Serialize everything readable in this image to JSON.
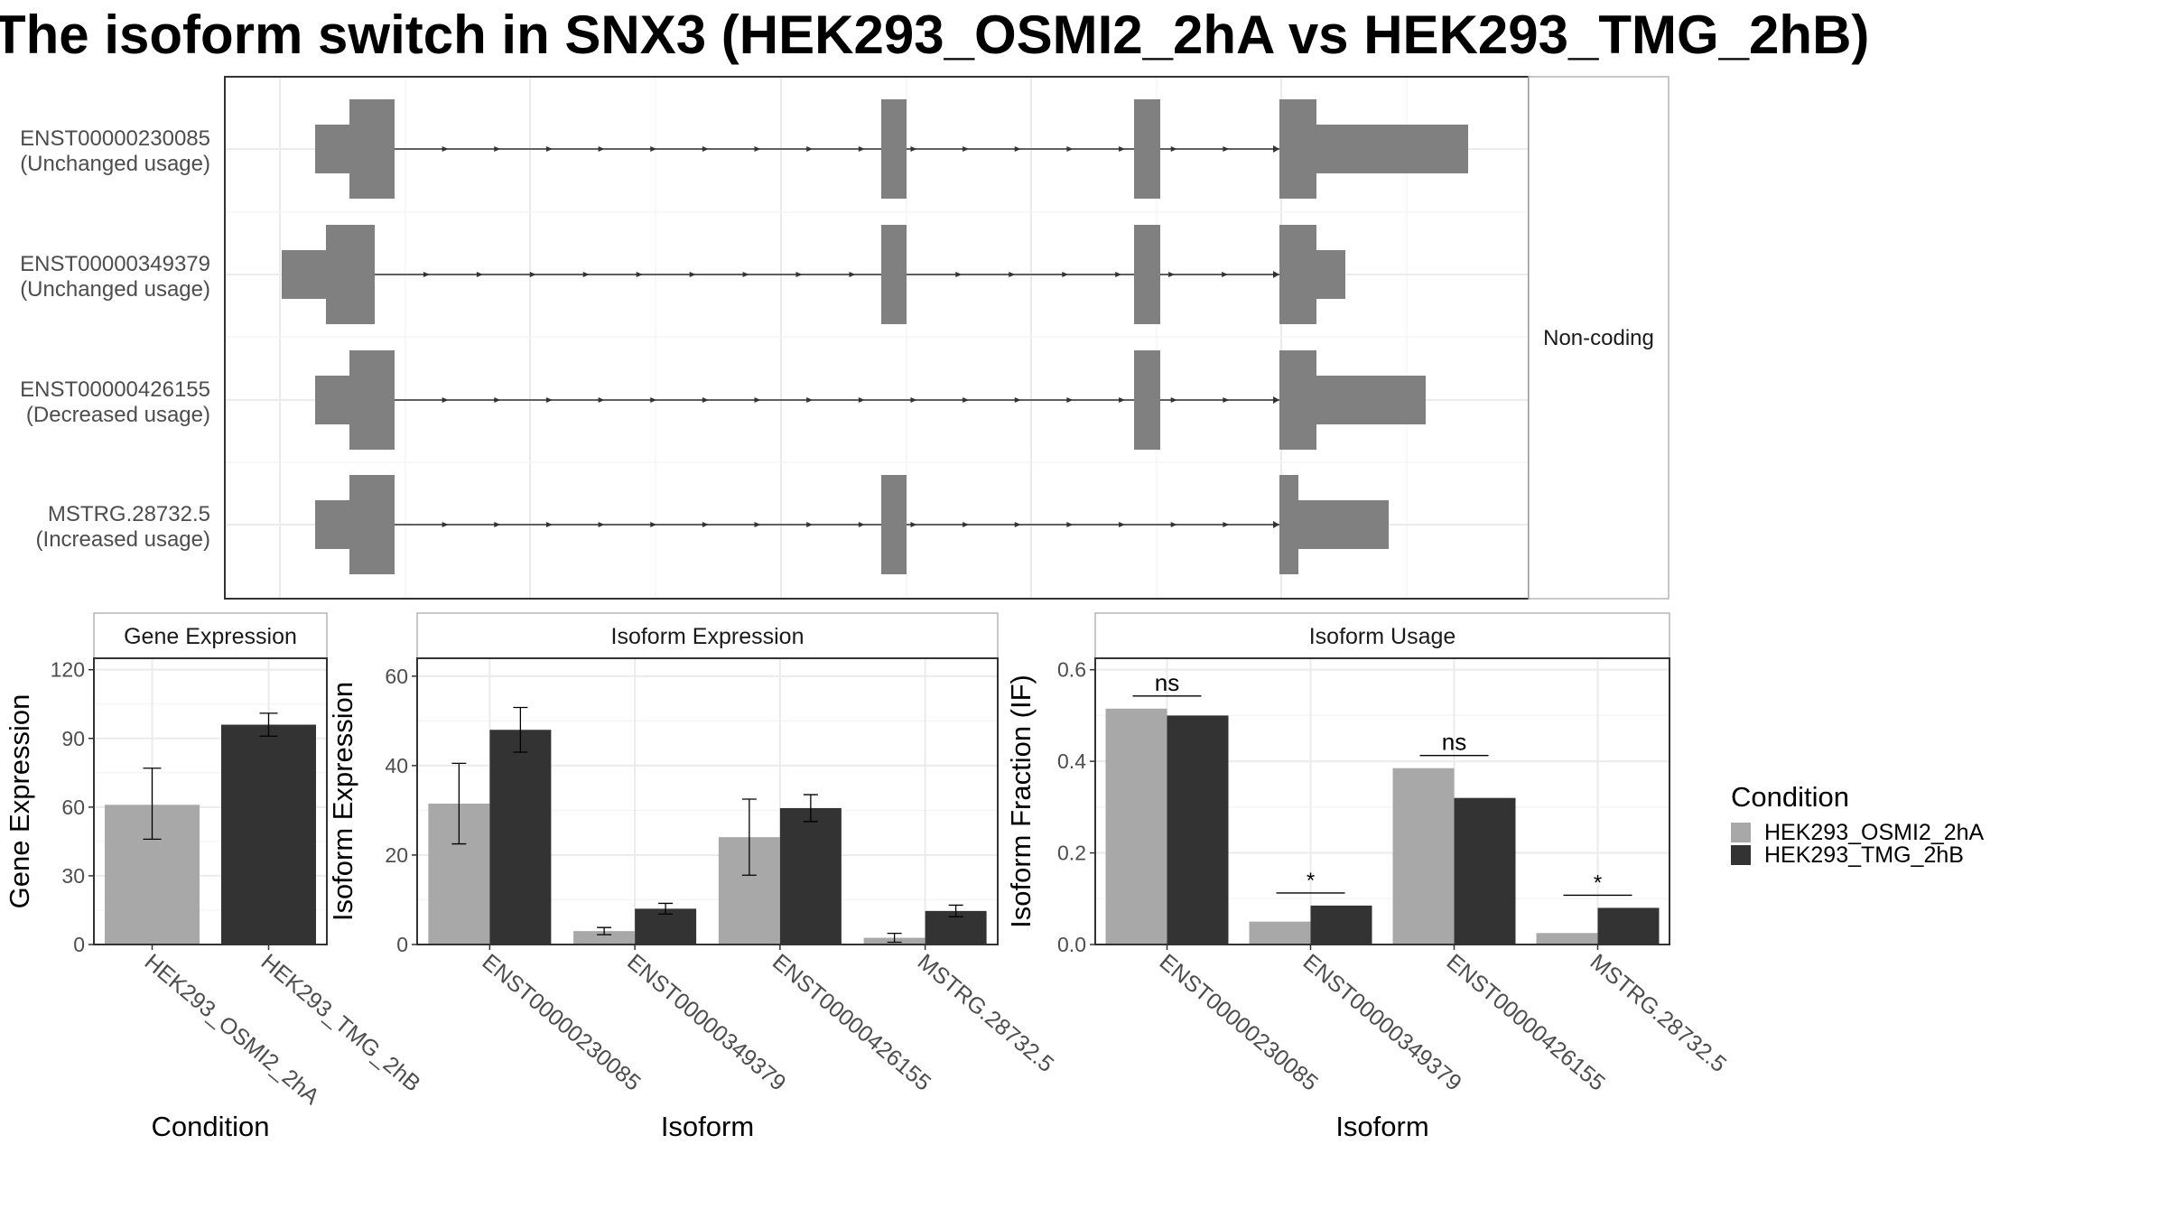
{
  "title": "The isoform switch in SNX3 (HEK293_OSMI2_2hA vs HEK293_TMG_2hB)",
  "colors": {
    "condition_a": "#a8a8a8",
    "condition_b": "#333333",
    "exon": "#808080",
    "grid": "#ebebeb",
    "panel_border": "#333333",
    "strip_fill": "#ffffff"
  },
  "structure_panel": {
    "facet_label": "Non-coding",
    "transcripts": [
      {
        "id": "ENST00000230085",
        "note": "(Unchanged usage)"
      },
      {
        "id": "ENST00000349379",
        "note": "(Unchanged usage)"
      },
      {
        "id": "ENST00000426155",
        "note": "(Decreased usage)"
      },
      {
        "id": "MSTRG.28732.5",
        "note": "(Increased usage)"
      }
    ]
  },
  "legend": {
    "title": "Condition",
    "items": [
      "HEK293_OSMI2_2hA",
      "HEK293_TMG_2hB"
    ]
  },
  "chart_data": [
    {
      "type": "bar",
      "title": "Gene Expression",
      "xlabel": "Condition",
      "ylabel": "Gene Expression",
      "categories": [
        "HEK293_OSMI2_2hA",
        "HEK293_TMG_2hB"
      ],
      "values": [
        61,
        96
      ],
      "error_low": [
        46,
        91
      ],
      "error_high": [
        77,
        101
      ],
      "ylim": [
        0,
        125
      ],
      "yticks": [
        "0",
        "30",
        "60",
        "90",
        "120"
      ]
    },
    {
      "type": "bar",
      "title": "Isoform Expression",
      "xlabel": "Isoform",
      "ylabel": "Isoform Expression",
      "categories": [
        "ENST00000230085",
        "ENST00000349379",
        "ENST00000426155",
        "MSTRG.28732.5"
      ],
      "series": [
        {
          "name": "HEK293_OSMI2_2hA",
          "values": [
            31.5,
            3,
            24,
            1.5
          ],
          "error_low": [
            22.5,
            2.2,
            15.5,
            0.5
          ],
          "error_high": [
            40.5,
            3.8,
            32.5,
            2.5
          ]
        },
        {
          "name": "HEK293_TMG_2hB",
          "values": [
            48,
            8,
            30.5,
            7.5
          ],
          "error_low": [
            43,
            6.8,
            27.5,
            6.2
          ],
          "error_high": [
            53,
            9.2,
            33.5,
            8.8
          ]
        }
      ],
      "ylim": [
        0,
        64
      ],
      "yticks": [
        "0",
        "20",
        "40",
        "60"
      ]
    },
    {
      "type": "bar",
      "title": "Isoform Usage",
      "xlabel": "Isoform",
      "ylabel": "Isoform Fraction (IF)",
      "categories": [
        "ENST00000230085",
        "ENST00000349379",
        "ENST00000426155",
        "MSTRG.28732.5"
      ],
      "series": [
        {
          "name": "HEK293_OSMI2_2hA",
          "values": [
            0.515,
            0.05,
            0.385,
            0.025
          ]
        },
        {
          "name": "HEK293_TMG_2hB",
          "values": [
            0.5,
            0.085,
            0.32,
            0.08
          ]
        }
      ],
      "significance": [
        "ns",
        "*",
        "ns",
        "*"
      ],
      "ylim": [
        0,
        0.625
      ],
      "yticks": [
        "0.0",
        "0.2",
        "0.4",
        "0.6"
      ]
    }
  ]
}
